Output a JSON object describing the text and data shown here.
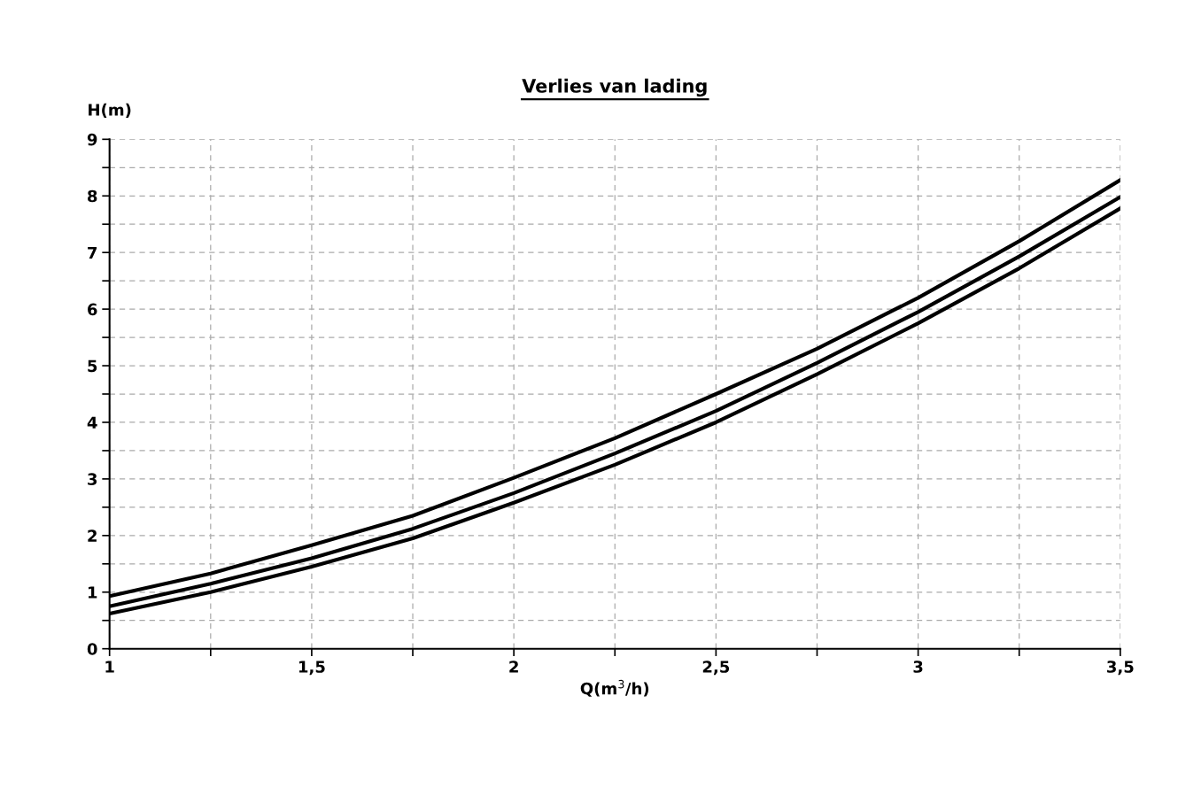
{
  "chart_data": {
    "type": "line",
    "title": "Verlies van lading",
    "xlabel": "Q(m$^{3}$/h)",
    "ylabel": "H(m)",
    "x": [
      1,
      1.25,
      1.5,
      1.75,
      2,
      2.25,
      2.5,
      2.75,
      3,
      3.25,
      3.5
    ],
    "series": [
      {
        "color": "#000000",
        "values": [
          0.93,
          1.33,
          1.83,
          2.35,
          3.02,
          3.72,
          4.5,
          5.3,
          6.2,
          7.2,
          8.28
        ]
      },
      {
        "color": "#000000",
        "values": [
          0.75,
          1.15,
          1.6,
          2.12,
          2.75,
          3.45,
          4.2,
          5.05,
          5.95,
          6.93,
          7.98
        ]
      },
      {
        "color": "#000000",
        "values": [
          0.62,
          1.0,
          1.45,
          1.95,
          2.58,
          3.25,
          4.0,
          4.85,
          5.75,
          6.72,
          7.78
        ]
      }
    ],
    "xlim": [
      1,
      3.5
    ],
    "ylim": [
      0,
      9
    ],
    "xticks": [
      1,
      {
        "value": 1.25,
        "label": null
      },
      {
        "value": 1.5,
        "label": "1,5"
      },
      {
        "value": 1.75,
        "label": null
      },
      2,
      {
        "value": 2.25,
        "label": null
      },
      {
        "value": 2.5,
        "label": "2,5"
      },
      {
        "value": 2.75,
        "label": null
      },
      3,
      {
        "value": 3.25,
        "label": null
      },
      {
        "value": 3.5,
        "label": "3,5"
      }
    ],
    "yticks": [
      0,
      {
        "value": 0.5,
        "label": null
      },
      1,
      {
        "value": 1.5,
        "label": null
      },
      2,
      {
        "value": 2.5,
        "label": null
      },
      3,
      {
        "value": 3.5,
        "label": null
      },
      4,
      {
        "value": 4.5,
        "label": null
      },
      5,
      {
        "value": 5.5,
        "label": null
      },
      6,
      {
        "value": 6.5,
        "label": null
      },
      7,
      {
        "value": 7.5,
        "label": null
      },
      8,
      {
        "value": 8.5,
        "label": null
      },
      9
    ],
    "grid": true,
    "marker": "none",
    "line_style": "solid"
  }
}
